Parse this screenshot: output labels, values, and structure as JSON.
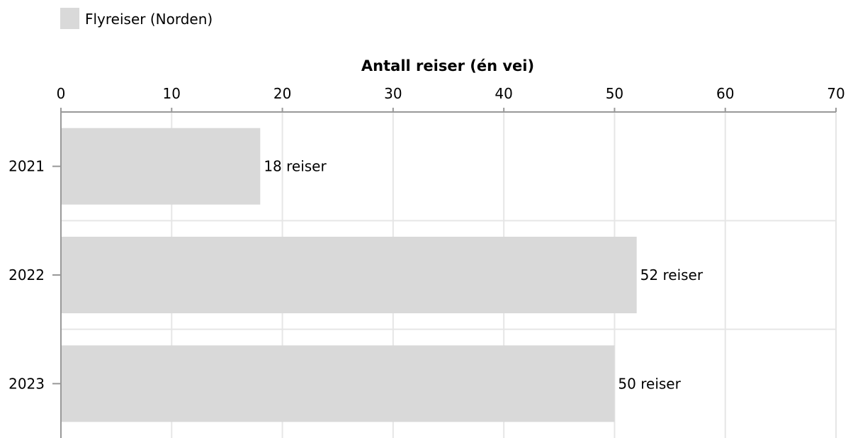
{
  "legend": {
    "label": "Flyreiser (Norden)"
  },
  "chart_data": {
    "type": "bar",
    "orientation": "horizontal",
    "categories": [
      "2021",
      "2022",
      "2023"
    ],
    "series": [
      {
        "name": "Flyreiser (Norden)",
        "values": [
          18,
          52,
          50
        ],
        "data_labels": [
          "18 reiser",
          "52 reiser",
          "50 reiser"
        ],
        "color": "#d9d9d9"
      }
    ],
    "title": "",
    "xlabel": "Antall reiser (én vei)",
    "ylabel": "",
    "xlim": [
      0,
      70
    ],
    "xticks": [
      "0",
      "10",
      "20",
      "30",
      "40",
      "50",
      "60",
      "70"
    ],
    "x_axis_position": "top",
    "legend_position": "top-left",
    "grid": true,
    "colors": {
      "bar": "#d9d9d9",
      "grid": "#e6e6e6",
      "axis": "#999999",
      "text": "#000000"
    }
  }
}
